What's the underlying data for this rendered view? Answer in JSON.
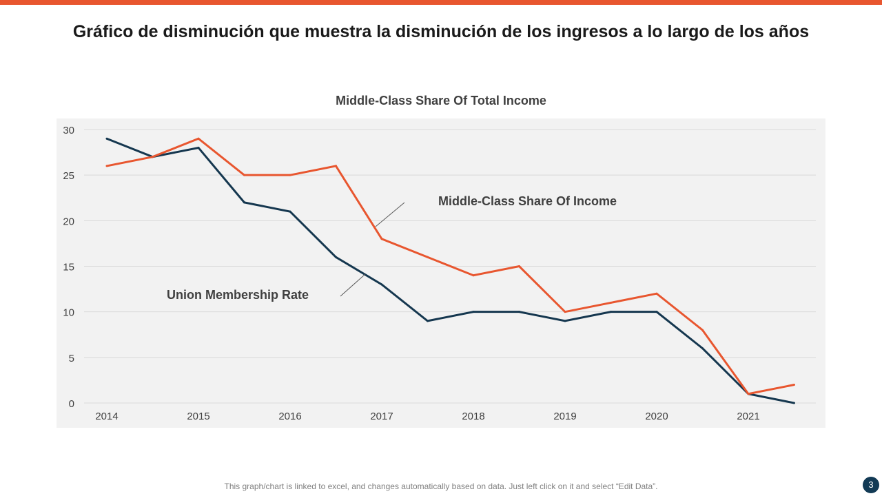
{
  "slide": {
    "title": "Gráfico de disminución que muestra la disminución de los ingresos a lo largo de los años",
    "footer": "This graph/chart is linked to excel, and changes automatically based on data. Just left click on it and select “Edit Data”.",
    "page_number": "3",
    "accent_color": "#E8562F"
  },
  "chart_data": {
    "type": "line",
    "title": "Middle-Class Share Of Total Income",
    "x": [
      2014,
      2014.5,
      2015,
      2015.5,
      2016,
      2016.5,
      2017,
      2017.5,
      2018,
      2018.5,
      2019,
      2019.5,
      2020,
      2020.5,
      2021,
      2021.5
    ],
    "x_tick_labels": [
      "2014",
      "2015",
      "2016",
      "2017",
      "2018",
      "2019",
      "2020",
      "2021"
    ],
    "y_ticks": [
      "0",
      "5",
      "10",
      "15",
      "20",
      "25",
      "30"
    ],
    "ylim": [
      0,
      30
    ],
    "grid": true,
    "legend": "none",
    "series": [
      {
        "name": "Union Membership Rate",
        "color": "#15374F",
        "values": [
          29,
          27,
          28,
          22,
          21,
          16,
          13,
          9,
          10,
          10,
          9,
          10,
          10,
          6,
          1,
          0
        ]
      },
      {
        "name": "Middle-Class Share Of Income",
        "color": "#E8562F",
        "values": [
          26,
          27,
          29,
          25,
          25,
          26,
          18,
          16,
          14,
          15,
          10,
          11,
          12,
          8,
          1,
          2
        ]
      }
    ]
  }
}
